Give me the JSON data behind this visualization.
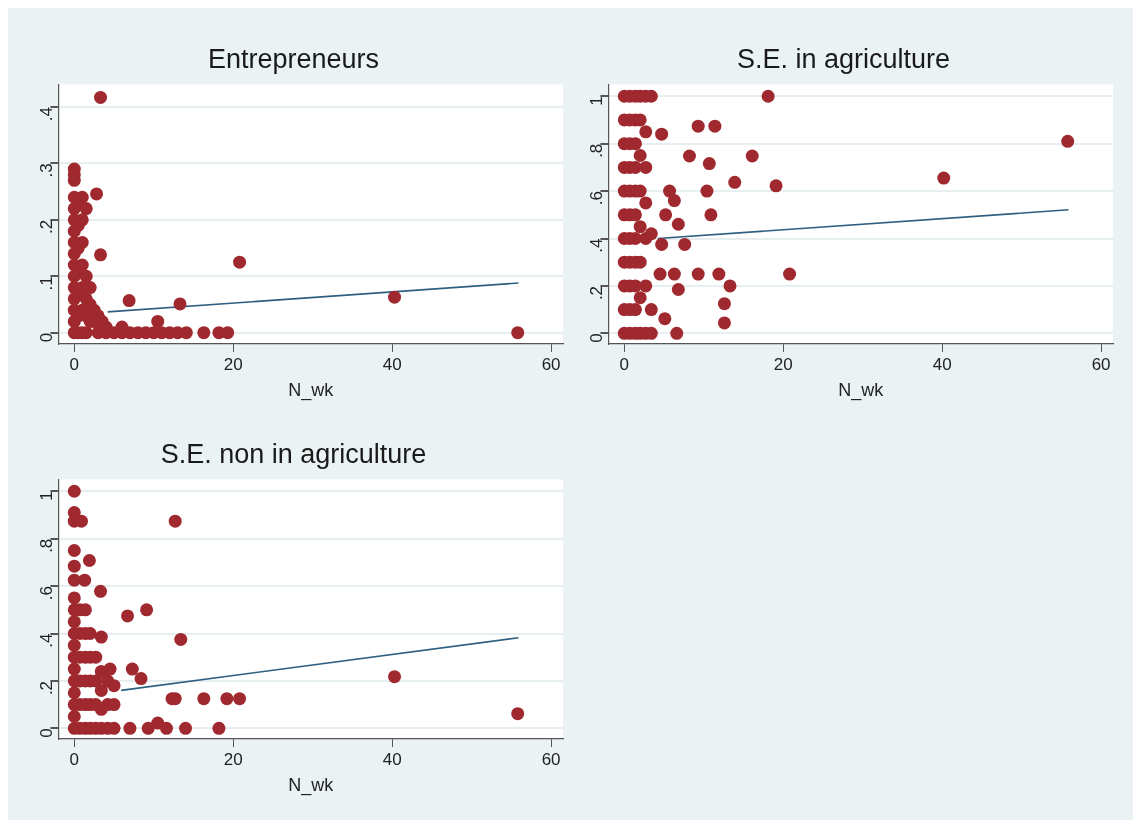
{
  "chart_data": [
    {
      "type": "scatter",
      "title": "Entrepreneurs",
      "xlabel": "N_wk",
      "xlim": [
        -2,
        61.5
      ],
      "xticks": [
        0,
        20,
        40,
        60
      ],
      "ylim": [
        -0.02,
        0.44
      ],
      "yticks": [
        {
          "value": 0,
          "label": "0"
        },
        {
          "value": 0.1,
          "label": ".1"
        },
        {
          "value": 0.2,
          "label": ".2"
        },
        {
          "value": 0.3,
          "label": ".3"
        },
        {
          "value": 0.4,
          "label": ".4"
        }
      ],
      "grid": "y",
      "legend": false,
      "series": [
        {
          "marker": "circle",
          "color": "#a0282f",
          "x": [
            0,
            0,
            0,
            0,
            0,
            0,
            0,
            0,
            0,
            0,
            0,
            0,
            0,
            0,
            0,
            0.5,
            0.5,
            0.5,
            0.5,
            0.5,
            0.5,
            0.5,
            1,
            1,
            1,
            1,
            1,
            1,
            1,
            1.5,
            1.5,
            1.5,
            1.5,
            1.5,
            2,
            2,
            2,
            2.5,
            2.5,
            3,
            3,
            3.5,
            4,
            4,
            5,
            6,
            6,
            3.3,
            0,
            2.8,
            3.3,
            20.8,
            6.9,
            13.3,
            40.3,
            55.8,
            10.5,
            7,
            8,
            9,
            10,
            11,
            12,
            13,
            14.1,
            16.3,
            18.2,
            19.3
          ],
          "values": [
            0,
            0.02,
            0.04,
            0.06,
            0.08,
            0.1,
            0.12,
            0.14,
            0.16,
            0.18,
            0.2,
            0.22,
            0.24,
            0.27,
            0.28,
            0,
            0.03,
            0.07,
            0.11,
            0.15,
            0.19,
            0.23,
            0,
            0.04,
            0.08,
            0.12,
            0.16,
            0.2,
            0.24,
            0,
            0.03,
            0.06,
            0.1,
            0.22,
            0.02,
            0.05,
            0.08,
            0.02,
            0.04,
            0,
            0.03,
            0.02,
            0,
            0.01,
            0,
            0,
            0.01,
            0.417,
            0.29,
            0.246,
            0.138,
            0.125,
            0.057,
            0.051,
            0.063,
            0,
            0.02,
            0,
            0,
            0,
            0,
            0,
            0,
            0,
            0,
            0,
            0,
            0
          ]
        },
        {
          "type": "line",
          "marker": "none",
          "color": "#2f5f80",
          "x": [
            4.2,
            55.9
          ],
          "values": [
            0.037,
            0.088
          ]
        }
      ]
    },
    {
      "type": "scatter",
      "title": "S.E. in agriculture",
      "xlabel": "N_wk",
      "xlim": [
        -2,
        61.5
      ],
      "xticks": [
        0,
        20,
        40,
        60
      ],
      "ylim": [
        -0.045,
        1.05
      ],
      "yticks": [
        {
          "value": 0,
          "label": "0"
        },
        {
          "value": 0.2,
          "label": ".2"
        },
        {
          "value": 0.4,
          "label": ".4"
        },
        {
          "value": 0.6,
          "label": ".6"
        },
        {
          "value": 0.8,
          "label": ".8"
        },
        {
          "value": 1,
          "label": "1"
        }
      ],
      "grid": "y",
      "legend": false,
      "series": [
        {
          "marker": "circle",
          "color": "#a0282f",
          "x": [
            0,
            0,
            0,
            0,
            0,
            0,
            0,
            0,
            0,
            0,
            0,
            0.7,
            0.7,
            0.7,
            0.7,
            0.7,
            0.7,
            0.7,
            0.7,
            0.7,
            0.7,
            0.7,
            1.4,
            1.4,
            1.4,
            1.4,
            1.4,
            1.4,
            1.4,
            1.4,
            1.4,
            1.4,
            1.4,
            2,
            2,
            2,
            2,
            2,
            2,
            2,
            2,
            2.7,
            2.7,
            2.7,
            2.7,
            2.7,
            2.7,
            2.7,
            3.4,
            3.4,
            3.4,
            3.4,
            18.1,
            9.3,
            11.4,
            4.7,
            55.8,
            8.2,
            16.1,
            10.7,
            40.2,
            13.9,
            19.1,
            10.4,
            5.7,
            6.3,
            10.9,
            5.2,
            6.8,
            4.7,
            7.6,
            20.8,
            9.3,
            11.9,
            4.5,
            6.3,
            13.3,
            6.8,
            12.6,
            5.1,
            12.6,
            6.6
          ],
          "values": [
            0,
            0.1,
            0.2,
            0.3,
            0.4,
            0.5,
            0.6,
            0.7,
            0.8,
            0.9,
            1,
            0,
            0.1,
            0.2,
            0.3,
            0.4,
            0.5,
            0.6,
            0.7,
            0.8,
            0.9,
            1,
            0,
            0.1,
            0.2,
            0.3,
            0.4,
            0.5,
            0.6,
            0.7,
            0.8,
            0.9,
            1,
            0,
            0.15,
            0.3,
            0.45,
            0.6,
            0.75,
            0.9,
            1,
            0,
            0.2,
            0.4,
            0.55,
            0.7,
            0.85,
            1,
            0,
            0.1,
            0.42,
            1,
            1,
            0.874,
            0.874,
            0.84,
            0.81,
            0.748,
            0.748,
            0.716,
            0.655,
            0.637,
            0.622,
            0.6,
            0.6,
            0.56,
            0.5,
            0.5,
            0.46,
            0.375,
            0.375,
            0.25,
            0.25,
            0.25,
            0.25,
            0.25,
            0.2,
            0.185,
            0.125,
            0.062,
            0.044,
            0
          ]
        },
        {
          "type": "line",
          "marker": "none",
          "color": "#2f5f80",
          "x": [
            4.2,
            55.9
          ],
          "values": [
            0.4,
            0.521
          ]
        }
      ]
    },
    {
      "type": "scatter",
      "title": "S.E. non in agriculture",
      "xlabel": "N_wk",
      "xlim": [
        -2,
        61.5
      ],
      "xticks": [
        0,
        20,
        40,
        60
      ],
      "ylim": [
        -0.045,
        1.05
      ],
      "yticks": [
        {
          "value": 0,
          "label": "0"
        },
        {
          "value": 0.2,
          "label": ".2"
        },
        {
          "value": 0.4,
          "label": ".4"
        },
        {
          "value": 0.6,
          "label": ".6"
        },
        {
          "value": 0.8,
          "label": ".8"
        },
        {
          "value": 1,
          "label": "1"
        }
      ],
      "grid": "y",
      "legend": false,
      "series": [
        {
          "marker": "circle",
          "color": "#a0282f",
          "x": [
            0,
            0,
            0,
            0,
            0,
            0,
            0,
            0,
            0,
            0,
            0,
            0,
            0.7,
            0.7,
            0.7,
            0.7,
            0.7,
            0.7,
            1.4,
            1.4,
            1.4,
            1.4,
            1.4,
            1.4,
            2,
            2,
            2,
            2,
            2,
            2.7,
            2.7,
            2.7,
            2.7,
            3.4,
            3.4,
            3.4,
            3.4,
            4.2,
            4.2,
            4.2,
            5,
            5,
            5,
            0,
            0,
            0,
            0.9,
            12.7,
            0,
            1.9,
            0,
            0,
            1.3,
            3.3,
            9.1,
            6.7,
            13.4,
            3.4,
            4.5,
            7.3,
            8.4,
            40.3,
            12.3,
            12.7,
            16.3,
            19.2,
            20.8,
            55.8,
            7,
            9.3,
            10.5,
            11.6,
            14,
            18.2
          ],
          "values": [
            0,
            0.05,
            0.1,
            0.15,
            0.2,
            0.25,
            0.3,
            0.35,
            0.4,
            0.45,
            0.5,
            0.55,
            0,
            0.1,
            0.2,
            0.3,
            0.4,
            0.5,
            0,
            0.1,
            0.2,
            0.3,
            0.4,
            0.5,
            0,
            0.1,
            0.2,
            0.3,
            0.4,
            0,
            0.1,
            0.2,
            0.3,
            0,
            0.08,
            0.16,
            0.24,
            0,
            0.1,
            0.2,
            0,
            0.1,
            0.18,
            1,
            0.91,
            0.874,
            0.874,
            0.874,
            0.75,
            0.708,
            0.684,
            0.625,
            0.625,
            0.578,
            0.5,
            0.474,
            0.375,
            0.385,
            0.25,
            0.25,
            0.21,
            0.218,
            0.125,
            0.125,
            0.125,
            0.125,
            0.125,
            0.062,
            0,
            0,
            0.022,
            0,
            0,
            0
          ]
        },
        {
          "type": "line",
          "marker": "none",
          "color": "#2f5f80",
          "x": [
            5.9,
            55.9
          ],
          "values": [
            0.16,
            0.382
          ]
        }
      ]
    }
  ]
}
